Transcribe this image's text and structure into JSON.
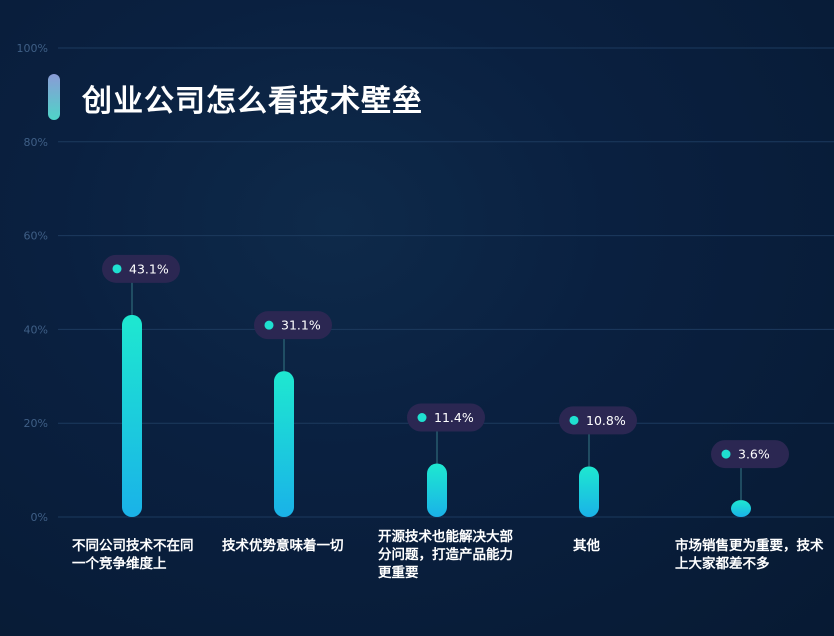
{
  "title": "创业公司怎么看技术壁垒",
  "colors": {
    "background": "#0a2040",
    "bar_top": "#1ee8d0",
    "bar_bottom": "#1ab8e6",
    "badge_bg": "#2b2752",
    "badge_dot": "#1fe0d0",
    "grid": "#1c3a5e",
    "tick_text": "#3f5f86"
  },
  "chart_data": {
    "type": "bar",
    "categories": [
      "不同公司技术不在同一个竞争维度上",
      "技术优势意味着一切",
      "开源技术也能解决大部分问题，打造产品能力更重要",
      "其他",
      "市场销售更为重要，技术上大家都差不多"
    ],
    "values": [
      43.1,
      31.1,
      11.4,
      10.8,
      3.6
    ],
    "data_labels": [
      "43.1%",
      "31.1%",
      "11.4%",
      "10.8%",
      "3.6%"
    ],
    "y_ticks": [
      "0%",
      "20%",
      "40%",
      "60%",
      "80%",
      "100%"
    ],
    "ylim": [
      0,
      100
    ],
    "grid": true
  }
}
